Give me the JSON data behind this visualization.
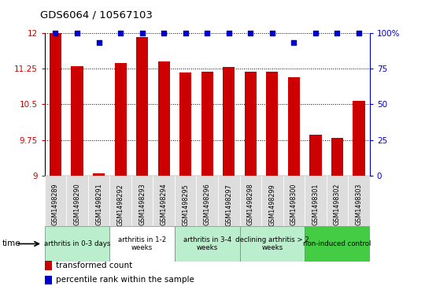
{
  "title": "GDS6064 / 10567103",
  "samples": [
    "GSM1498289",
    "GSM1498290",
    "GSM1498291",
    "GSM1498292",
    "GSM1498293",
    "GSM1498294",
    "GSM1498295",
    "GSM1498296",
    "GSM1498297",
    "GSM1498298",
    "GSM1498299",
    "GSM1498300",
    "GSM1498301",
    "GSM1498302",
    "GSM1498303"
  ],
  "bar_values": [
    12.0,
    11.3,
    9.05,
    11.37,
    11.92,
    11.4,
    11.17,
    11.18,
    11.28,
    11.18,
    11.18,
    11.07,
    9.87,
    9.8,
    10.58
  ],
  "percentile_values": [
    100,
    100,
    93,
    100,
    100,
    100,
    100,
    100,
    100,
    100,
    100,
    93,
    100,
    100,
    100
  ],
  "bar_color": "#cc0000",
  "percentile_color": "#0000cc",
  "ylim_left": [
    9.0,
    12.0
  ],
  "ylim_right": [
    0,
    100
  ],
  "yticks_left": [
    9.0,
    9.75,
    10.5,
    11.25,
    12.0
  ],
  "yticks_right": [
    0,
    25,
    50,
    75,
    100
  ],
  "ytick_labels_left": [
    "9",
    "9.75",
    "10.5",
    "11.25",
    "12"
  ],
  "ytick_labels_right": [
    "0",
    "25",
    "50",
    "75",
    "100%"
  ],
  "groups": [
    {
      "label": "arthritis in 0-3 days",
      "start": 0,
      "end": 3,
      "color": "#bbeecc"
    },
    {
      "label": "arthritis in 1-2\nweeks",
      "start": 3,
      "end": 6,
      "color": "#ffffff"
    },
    {
      "label": "arthritis in 3-4\nweeks",
      "start": 6,
      "end": 9,
      "color": "#bbeecc"
    },
    {
      "label": "declining arthritis > 2\nweeks",
      "start": 9,
      "end": 12,
      "color": "#bbeecc"
    },
    {
      "label": "non-induced control",
      "start": 12,
      "end": 15,
      "color": "#44cc44"
    }
  ],
  "bar_width": 0.55,
  "legend_items": [
    {
      "label": "transformed count",
      "color": "#cc0000"
    },
    {
      "label": "percentile rank within the sample",
      "color": "#0000cc"
    }
  ]
}
